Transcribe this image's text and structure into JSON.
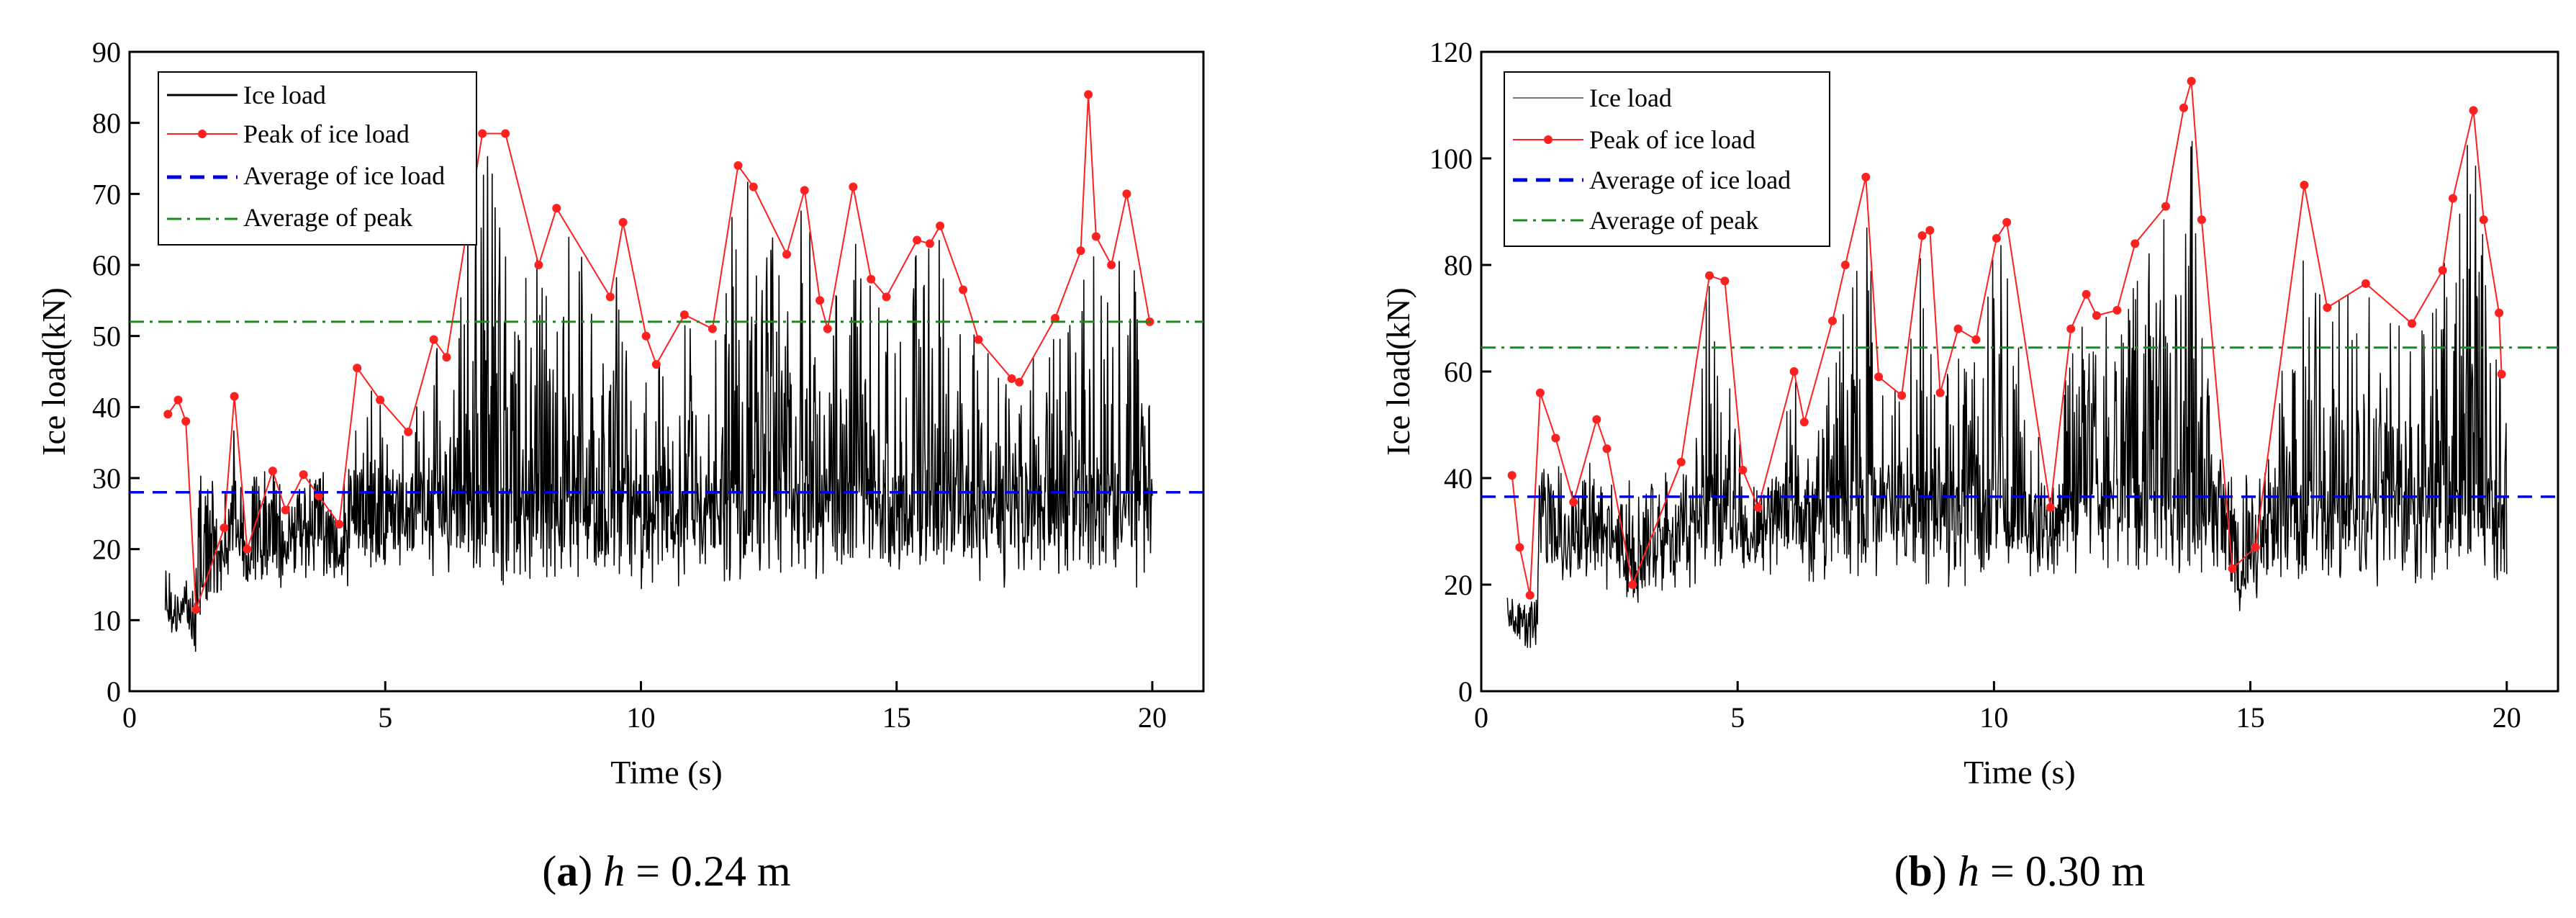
{
  "colors": {
    "ice_load": "#000000",
    "ice_load_b": "#777777",
    "peak": "#ff2020",
    "avg_load": "#0000dd",
    "avg_peak": "#1a8a1a"
  },
  "chart_data": [
    {
      "type": "line",
      "caption": {
        "letter": "a",
        "var": "h",
        "rest": " = 0.24 m"
      },
      "xlabel": "Time (s)",
      "ylabel": "Ice load(kN)",
      "xlim": [
        0,
        21
      ],
      "ylim": [
        0,
        90
      ],
      "xticks": [
        0,
        5,
        10,
        15,
        20
      ],
      "yticks": [
        0,
        10,
        20,
        30,
        40,
        50,
        60,
        70,
        80,
        90
      ],
      "legend_position": "top-left",
      "series": [
        {
          "name": "Ice load",
          "kind": "signal",
          "t_start": 0.7,
          "t_end": 20.0
        },
        {
          "name": "Peak of ice load",
          "kind": "peaks",
          "x": [
            0.75,
            0.95,
            1.1,
            1.3,
            1.85,
            2.05,
            2.3,
            2.8,
            3.05,
            3.4,
            3.7,
            4.1,
            4.45,
            4.9,
            5.45,
            5.95,
            6.2,
            6.9,
            7.35,
            8.0,
            8.35,
            9.4,
            9.65,
            10.1,
            10.3,
            10.85,
            11.4,
            11.9,
            12.2,
            12.85,
            13.2,
            13.5,
            13.65,
            14.15,
            14.5,
            14.8,
            15.4,
            15.65,
            15.85,
            16.3,
            16.6,
            17.25,
            17.4,
            18.1,
            18.6,
            18.75,
            18.9,
            19.2,
            19.5,
            19.95
          ],
          "values": [
            39,
            41,
            38,
            11.5,
            23,
            41.5,
            20,
            31,
            25.5,
            30.5,
            27.5,
            23.5,
            45.5,
            41,
            36.5,
            49.5,
            47,
            78.5,
            78.5,
            60,
            68,
            55.5,
            66,
            50,
            46,
            53,
            51,
            74,
            71,
            61.5,
            70.5,
            55,
            51,
            71,
            58,
            55.5,
            63.5,
            63,
            65.5,
            56.5,
            49.5,
            44,
            43.5,
            52.5,
            62,
            84,
            64,
            60,
            70,
            52
          ]
        },
        {
          "name": "Average of ice load",
          "kind": "hline",
          "value": 28
        },
        {
          "name": "Average of peak",
          "kind": "hline",
          "value": 52
        }
      ]
    },
    {
      "type": "line",
      "caption": {
        "letter": "b",
        "var": "h",
        "rest": " = 0.30 m"
      },
      "xlabel": "Time (s)",
      "ylabel": "Ice load(kN)",
      "xlim": [
        0,
        21
      ],
      "ylim": [
        0,
        120
      ],
      "xticks": [
        0,
        5,
        10,
        15,
        20
      ],
      "yticks": [
        0,
        20,
        40,
        60,
        80,
        100,
        120
      ],
      "legend_position": "top-left",
      "series": [
        {
          "name": "Ice load",
          "kind": "signal",
          "t_start": 0.5,
          "t_end": 20.0
        },
        {
          "name": "Peak of ice load",
          "kind": "peaks",
          "x": [
            0.6,
            0.75,
            0.95,
            1.15,
            1.45,
            1.8,
            2.25,
            2.45,
            2.95,
            3.9,
            4.45,
            4.75,
            5.1,
            5.4,
            6.1,
            6.3,
            6.85,
            7.1,
            7.5,
            7.75,
            8.2,
            8.6,
            8.75,
            8.95,
            9.3,
            9.65,
            10.05,
            10.25,
            11.1,
            11.5,
            11.8,
            12.0,
            12.4,
            12.75,
            13.35,
            13.7,
            13.85,
            14.05,
            14.65,
            15.1,
            16.05,
            16.5,
            17.25,
            18.15,
            18.75,
            18.95,
            19.35,
            19.55,
            19.85,
            19.9
          ],
          "values": [
            40.5,
            27,
            18,
            56,
            47.5,
            35.5,
            51,
            45.5,
            20,
            43,
            78,
            77,
            41.5,
            34.5,
            60,
            50.5,
            69.5,
            80,
            96.5,
            59,
            55.5,
            85.5,
            86.5,
            56,
            68,
            66,
            85,
            88,
            34.5,
            68,
            74.5,
            70.5,
            71.5,
            84,
            91,
            109.5,
            114.5,
            88.5,
            23,
            27,
            95,
            72,
            76.5,
            69,
            79,
            92.5,
            109,
            88.5,
            71,
            59.5
          ]
        },
        {
          "name": "Average of ice load",
          "kind": "hline",
          "value": 36.5
        },
        {
          "name": "Average of peak",
          "kind": "hline",
          "value": 64.5
        }
      ]
    }
  ]
}
